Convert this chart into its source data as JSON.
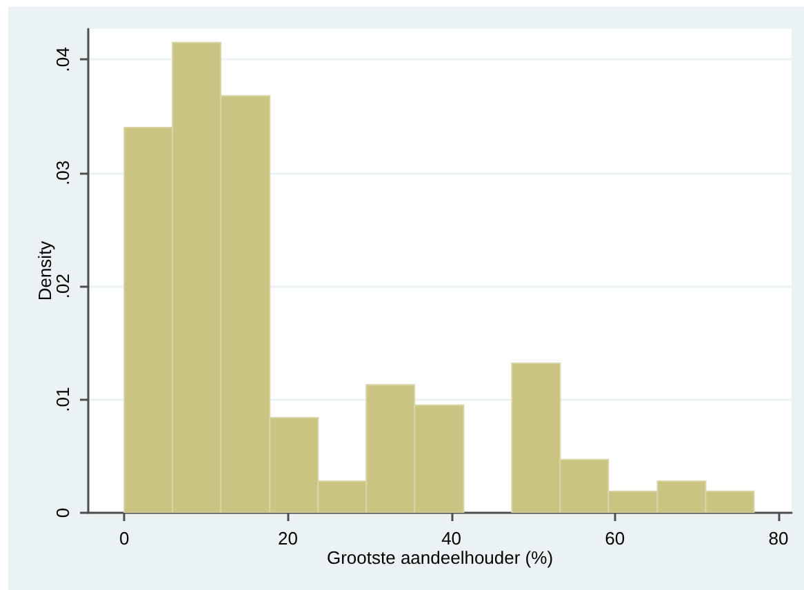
{
  "chart_data": {
    "type": "histogram",
    "xlabel": "Grootste aandeelhouder (%)",
    "ylabel": "Density",
    "bins": [
      0,
      5.9,
      11.8,
      17.8,
      23.7,
      29.6,
      35.5,
      41.5,
      47.4,
      53.3,
      59.2,
      65.2,
      71.1,
      77
    ],
    "values": [
      0.034,
      0.0415,
      0.0368,
      0.0084,
      0.0028,
      0.0113,
      0.0095,
      0,
      0.0132,
      0.0047,
      0.0019,
      0.0028,
      0.0019
    ],
    "color": "#cac483",
    "xlim": [
      -4.4,
      81.6
    ],
    "xticks": [
      0,
      20,
      40,
      60,
      80
    ],
    "ylim": [
      0,
      0.0427
    ],
    "yticks": [
      0,
      {
        "value": 0.01,
        "label": ".01"
      },
      {
        "value": 0.02,
        "label": ".02"
      },
      {
        "value": 0.03,
        "label": ".03"
      },
      {
        "value": 0.04,
        "label": ".04"
      }
    ],
    "grid": "y"
  }
}
